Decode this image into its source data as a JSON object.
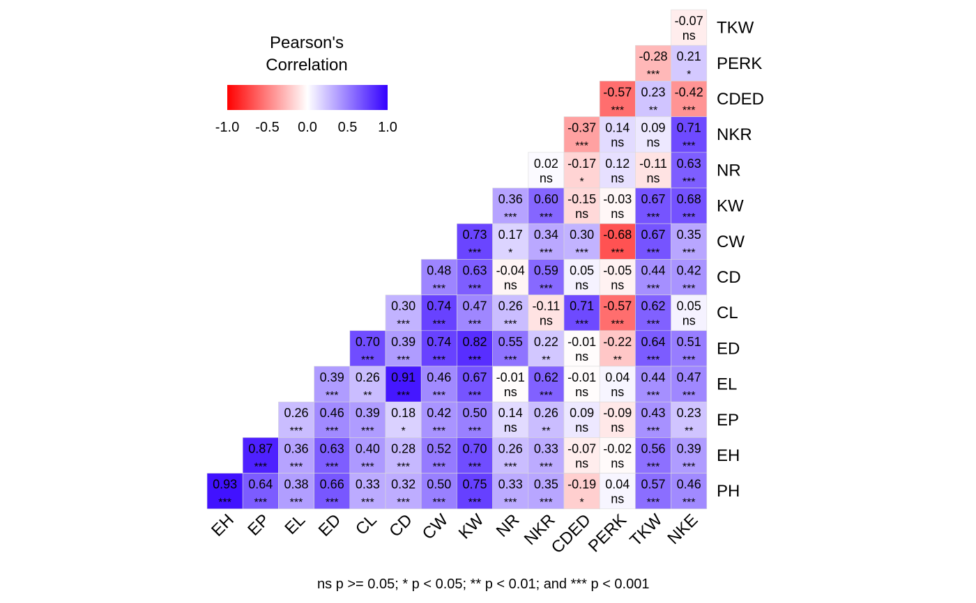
{
  "chart_data": {
    "type": "heatmap",
    "title": "",
    "legend": {
      "title_line1": "Pearson's",
      "title_line2": "Correlation",
      "ticks": [
        "-1.0",
        "-0.5",
        "0.0",
        "0.5",
        "1.0"
      ],
      "range": [
        -1.0,
        1.0
      ],
      "colors": {
        "low": "#FF0000",
        "mid": "#FFFFFF",
        "high": "#3300FF"
      },
      "placement": "top-left"
    },
    "x_labels": [
      "EH",
      "EP",
      "EL",
      "ED",
      "CL",
      "CD",
      "CW",
      "KW",
      "NR",
      "NKR",
      "CDED",
      "PERK",
      "TKW",
      "NKE"
    ],
    "y_labels": [
      "TKW",
      "PERK",
      "CDED",
      "NKR",
      "NR",
      "KW",
      "CW",
      "CD",
      "CL",
      "ED",
      "EL",
      "EP",
      "EH",
      "PH"
    ],
    "cells": [
      {
        "row": "TKW",
        "col": "NKE",
        "value": -0.07,
        "sig": "ns"
      },
      {
        "row": "PERK",
        "col": "TKW",
        "value": -0.28,
        "sig": "***"
      },
      {
        "row": "PERK",
        "col": "NKE",
        "value": 0.21,
        "sig": "*"
      },
      {
        "row": "CDED",
        "col": "PERK",
        "value": -0.57,
        "sig": "***"
      },
      {
        "row": "CDED",
        "col": "TKW",
        "value": 0.23,
        "sig": "**"
      },
      {
        "row": "CDED",
        "col": "NKE",
        "value": -0.42,
        "sig": "***"
      },
      {
        "row": "NKR",
        "col": "CDED",
        "value": -0.37,
        "sig": "***"
      },
      {
        "row": "NKR",
        "col": "PERK",
        "value": 0.14,
        "sig": "ns"
      },
      {
        "row": "NKR",
        "col": "TKW",
        "value": 0.09,
        "sig": "ns"
      },
      {
        "row": "NKR",
        "col": "NKE",
        "value": 0.71,
        "sig": "***"
      },
      {
        "row": "NR",
        "col": "NKR",
        "value": 0.02,
        "sig": "ns"
      },
      {
        "row": "NR",
        "col": "CDED",
        "value": -0.17,
        "sig": "*"
      },
      {
        "row": "NR",
        "col": "PERK",
        "value": 0.12,
        "sig": "ns"
      },
      {
        "row": "NR",
        "col": "TKW",
        "value": -0.11,
        "sig": "ns"
      },
      {
        "row": "NR",
        "col": "NKE",
        "value": 0.63,
        "sig": "***"
      },
      {
        "row": "KW",
        "col": "NR",
        "value": 0.36,
        "sig": "***"
      },
      {
        "row": "KW",
        "col": "NKR",
        "value": 0.6,
        "sig": "***"
      },
      {
        "row": "KW",
        "col": "CDED",
        "value": -0.15,
        "sig": "ns"
      },
      {
        "row": "KW",
        "col": "PERK",
        "value": -0.03,
        "sig": "ns"
      },
      {
        "row": "KW",
        "col": "TKW",
        "value": 0.67,
        "sig": "***"
      },
      {
        "row": "KW",
        "col": "NKE",
        "value": 0.68,
        "sig": "***"
      },
      {
        "row": "CW",
        "col": "KW",
        "value": 0.73,
        "sig": "***"
      },
      {
        "row": "CW",
        "col": "NR",
        "value": 0.17,
        "sig": "*"
      },
      {
        "row": "CW",
        "col": "NKR",
        "value": 0.34,
        "sig": "***"
      },
      {
        "row": "CW",
        "col": "CDED",
        "value": 0.3,
        "sig": "***"
      },
      {
        "row": "CW",
        "col": "PERK",
        "value": -0.68,
        "sig": "***"
      },
      {
        "row": "CW",
        "col": "TKW",
        "value": 0.67,
        "sig": "***"
      },
      {
        "row": "CW",
        "col": "NKE",
        "value": 0.35,
        "sig": "***"
      },
      {
        "row": "CD",
        "col": "CW",
        "value": 0.48,
        "sig": "***"
      },
      {
        "row": "CD",
        "col": "KW",
        "value": 0.63,
        "sig": "***"
      },
      {
        "row": "CD",
        "col": "NR",
        "value": -0.04,
        "sig": "ns"
      },
      {
        "row": "CD",
        "col": "NKR",
        "value": 0.59,
        "sig": "***"
      },
      {
        "row": "CD",
        "col": "CDED",
        "value": 0.05,
        "sig": "ns"
      },
      {
        "row": "CD",
        "col": "PERK",
        "value": -0.05,
        "sig": "ns"
      },
      {
        "row": "CD",
        "col": "TKW",
        "value": 0.44,
        "sig": "***"
      },
      {
        "row": "CD",
        "col": "NKE",
        "value": 0.42,
        "sig": "***"
      },
      {
        "row": "CL",
        "col": "CD",
        "value": 0.3,
        "sig": "***"
      },
      {
        "row": "CL",
        "col": "CW",
        "value": 0.74,
        "sig": "***"
      },
      {
        "row": "CL",
        "col": "KW",
        "value": 0.47,
        "sig": "***"
      },
      {
        "row": "CL",
        "col": "NR",
        "value": 0.26,
        "sig": "***"
      },
      {
        "row": "CL",
        "col": "NKR",
        "value": -0.11,
        "sig": "ns"
      },
      {
        "row": "CL",
        "col": "CDED",
        "value": 0.71,
        "sig": "***"
      },
      {
        "row": "CL",
        "col": "PERK",
        "value": -0.57,
        "sig": "***"
      },
      {
        "row": "CL",
        "col": "TKW",
        "value": 0.62,
        "sig": "***"
      },
      {
        "row": "CL",
        "col": "NKE",
        "value": 0.05,
        "sig": "ns"
      },
      {
        "row": "ED",
        "col": "CL",
        "value": 0.7,
        "sig": "***"
      },
      {
        "row": "ED",
        "col": "CD",
        "value": 0.39,
        "sig": "***"
      },
      {
        "row": "ED",
        "col": "CW",
        "value": 0.74,
        "sig": "***"
      },
      {
        "row": "ED",
        "col": "KW",
        "value": 0.82,
        "sig": "***"
      },
      {
        "row": "ED",
        "col": "NR",
        "value": 0.55,
        "sig": "***"
      },
      {
        "row": "ED",
        "col": "NKR",
        "value": 0.22,
        "sig": "**"
      },
      {
        "row": "ED",
        "col": "CDED",
        "value": -0.01,
        "sig": "ns"
      },
      {
        "row": "ED",
        "col": "PERK",
        "value": -0.22,
        "sig": "**"
      },
      {
        "row": "ED",
        "col": "TKW",
        "value": 0.64,
        "sig": "***"
      },
      {
        "row": "ED",
        "col": "NKE",
        "value": 0.51,
        "sig": "***"
      },
      {
        "row": "EL",
        "col": "ED",
        "value": 0.39,
        "sig": "***"
      },
      {
        "row": "EL",
        "col": "CL",
        "value": 0.26,
        "sig": "**"
      },
      {
        "row": "EL",
        "col": "CD",
        "value": 0.91,
        "sig": "***"
      },
      {
        "row": "EL",
        "col": "CW",
        "value": 0.46,
        "sig": "***"
      },
      {
        "row": "EL",
        "col": "KW",
        "value": 0.67,
        "sig": "***"
      },
      {
        "row": "EL",
        "col": "NR",
        "value": -0.01,
        "sig": "ns"
      },
      {
        "row": "EL",
        "col": "NKR",
        "value": 0.62,
        "sig": "***"
      },
      {
        "row": "EL",
        "col": "CDED",
        "value": -0.01,
        "sig": "ns"
      },
      {
        "row": "EL",
        "col": "PERK",
        "value": 0.04,
        "sig": "ns"
      },
      {
        "row": "EL",
        "col": "TKW",
        "value": 0.44,
        "sig": "***"
      },
      {
        "row": "EL",
        "col": "NKE",
        "value": 0.47,
        "sig": "***"
      },
      {
        "row": "EP",
        "col": "EL",
        "value": 0.26,
        "sig": "***"
      },
      {
        "row": "EP",
        "col": "ED",
        "value": 0.46,
        "sig": "***"
      },
      {
        "row": "EP",
        "col": "CL",
        "value": 0.39,
        "sig": "***"
      },
      {
        "row": "EP",
        "col": "CD",
        "value": 0.18,
        "sig": "*"
      },
      {
        "row": "EP",
        "col": "CW",
        "value": 0.42,
        "sig": "***"
      },
      {
        "row": "EP",
        "col": "KW",
        "value": 0.5,
        "sig": "***"
      },
      {
        "row": "EP",
        "col": "NR",
        "value": 0.14,
        "sig": "ns"
      },
      {
        "row": "EP",
        "col": "NKR",
        "value": 0.26,
        "sig": "**"
      },
      {
        "row": "EP",
        "col": "CDED",
        "value": 0.09,
        "sig": "ns"
      },
      {
        "row": "EP",
        "col": "PERK",
        "value": -0.09,
        "sig": "ns"
      },
      {
        "row": "EP",
        "col": "TKW",
        "value": 0.43,
        "sig": "***"
      },
      {
        "row": "EP",
        "col": "NKE",
        "value": 0.23,
        "sig": "**"
      },
      {
        "row": "EH",
        "col": "EP",
        "value": 0.87,
        "sig": "***"
      },
      {
        "row": "EH",
        "col": "EL",
        "value": 0.36,
        "sig": "***"
      },
      {
        "row": "EH",
        "col": "ED",
        "value": 0.63,
        "sig": "***"
      },
      {
        "row": "EH",
        "col": "CL",
        "value": 0.4,
        "sig": "***"
      },
      {
        "row": "EH",
        "col": "CD",
        "value": 0.28,
        "sig": "***"
      },
      {
        "row": "EH",
        "col": "CW",
        "value": 0.52,
        "sig": "***"
      },
      {
        "row": "EH",
        "col": "KW",
        "value": 0.7,
        "sig": "***"
      },
      {
        "row": "EH",
        "col": "NR",
        "value": 0.26,
        "sig": "***"
      },
      {
        "row": "EH",
        "col": "NKR",
        "value": 0.33,
        "sig": "***"
      },
      {
        "row": "EH",
        "col": "CDED",
        "value": -0.07,
        "sig": "ns"
      },
      {
        "row": "EH",
        "col": "PERK",
        "value": -0.02,
        "sig": "ns"
      },
      {
        "row": "EH",
        "col": "TKW",
        "value": 0.56,
        "sig": "***"
      },
      {
        "row": "EH",
        "col": "NKE",
        "value": 0.39,
        "sig": "***"
      },
      {
        "row": "PH",
        "col": "EH",
        "value": 0.93,
        "sig": "***"
      },
      {
        "row": "PH",
        "col": "EP",
        "value": 0.64,
        "sig": "***"
      },
      {
        "row": "PH",
        "col": "EL",
        "value": 0.38,
        "sig": "***"
      },
      {
        "row": "PH",
        "col": "ED",
        "value": 0.66,
        "sig": "***"
      },
      {
        "row": "PH",
        "col": "CL",
        "value": 0.33,
        "sig": "***"
      },
      {
        "row": "PH",
        "col": "CD",
        "value": 0.32,
        "sig": "***"
      },
      {
        "row": "PH",
        "col": "CW",
        "value": 0.5,
        "sig": "***"
      },
      {
        "row": "PH",
        "col": "KW",
        "value": 0.75,
        "sig": "***"
      },
      {
        "row": "PH",
        "col": "NR",
        "value": 0.33,
        "sig": "***"
      },
      {
        "row": "PH",
        "col": "NKR",
        "value": 0.35,
        "sig": "***"
      },
      {
        "row": "PH",
        "col": "CDED",
        "value": -0.19,
        "sig": "*"
      },
      {
        "row": "PH",
        "col": "PERK",
        "value": 0.04,
        "sig": "ns"
      },
      {
        "row": "PH",
        "col": "TKW",
        "value": 0.57,
        "sig": "***"
      },
      {
        "row": "PH",
        "col": "NKE",
        "value": 0.46,
        "sig": "***"
      }
    ],
    "caption": "ns p >= 0.05; * p < 0.05; ** p < 0.01; and *** p < 0.001"
  }
}
